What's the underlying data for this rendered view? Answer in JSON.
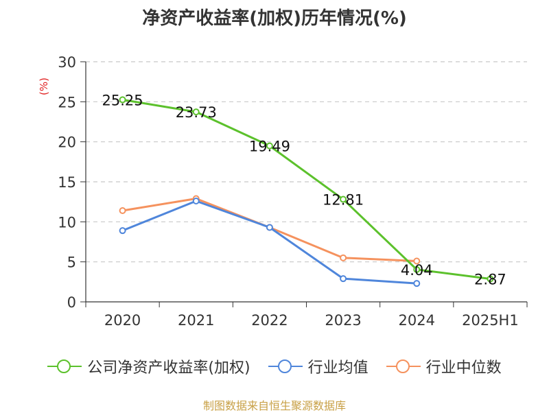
{
  "colors": {
    "company": "#5cc12c",
    "industry_avg": "#4f86db",
    "industry_median": "#f5925e",
    "ylabel": "#e02020",
    "source": "#c8a046"
  },
  "legend": {
    "company_label": "公司净资产收益率(加权)",
    "avg_label": "行业均值",
    "median_label": "行业中位数"
  },
  "source": "制图数据来自恒生聚源数据库",
  "chart_data": {
    "type": "line",
    "title": "净资产收益率(加权)历年情况(%)",
    "xlabel": "",
    "ylabel": "(%)",
    "categories": [
      "2020",
      "2021",
      "2022",
      "2023",
      "2024",
      "2025H1"
    ],
    "ylim": [
      0,
      30
    ],
    "yticks": [
      0,
      5,
      10,
      15,
      20,
      25,
      30
    ],
    "grid": true,
    "legend_position": "bottom",
    "series": [
      {
        "name": "公司净资产收益率(加权)",
        "values": [
          25.25,
          23.73,
          19.49,
          12.81,
          4.04,
          2.87
        ],
        "data_labels": [
          "25.25",
          "23.73",
          "19.49",
          "12.81",
          "4.04",
          "2.87"
        ]
      },
      {
        "name": "行业均值",
        "values": [
          8.9,
          12.6,
          9.3,
          2.9,
          2.3,
          null
        ]
      },
      {
        "name": "行业中位数",
        "values": [
          11.4,
          12.9,
          9.3,
          5.5,
          5.1,
          null
        ]
      }
    ]
  }
}
